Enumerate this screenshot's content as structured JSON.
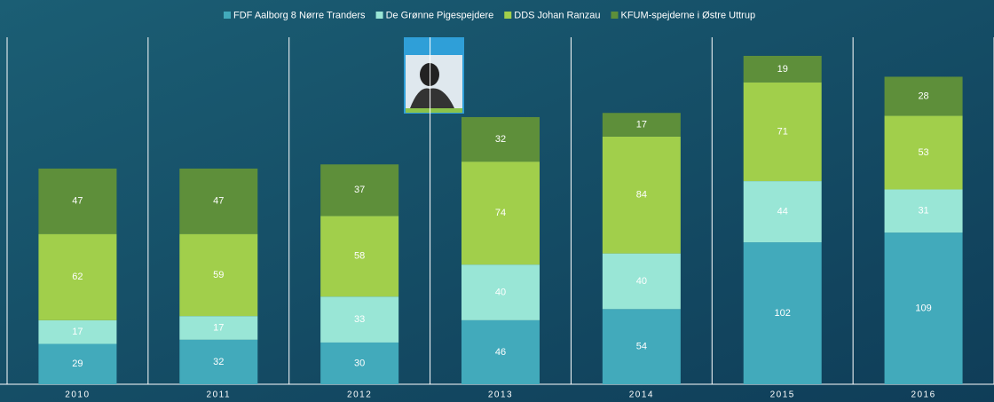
{
  "chart_data": {
    "type": "stacked-bar",
    "categories": [
      "2010",
      "2011",
      "2012",
      "2013",
      "2014",
      "2015",
      "2016"
    ],
    "series": [
      {
        "name": "FDF Aalborg 8 Nørre Tranders",
        "color": "#42aabb",
        "values": [
          29,
          32,
          30,
          46,
          54,
          102,
          109
        ]
      },
      {
        "name": "De Grønne Pigespejdere",
        "color": "#99e6d6",
        "values": [
          17,
          17,
          33,
          40,
          40,
          44,
          31
        ]
      },
      {
        "name": "DDS Johan Ranzau",
        "color": "#a1cf4b",
        "values": [
          62,
          59,
          58,
          74,
          84,
          71,
          53
        ]
      },
      {
        "name": "KFUM-spejderne i Østre Uttrup",
        "color": "#5e8f3a",
        "values": [
          47,
          47,
          37,
          32,
          17,
          19,
          28
        ]
      }
    ]
  }
}
